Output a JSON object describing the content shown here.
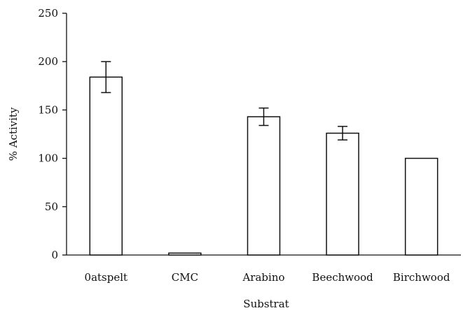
{
  "chart_data": {
    "type": "bar",
    "categories": [
      "0atspelt",
      "CMC",
      "Arabino",
      "Beechwood",
      "Birchwood"
    ],
    "values": [
      184,
      2,
      143,
      126,
      100
    ],
    "error": [
      16,
      0,
      9,
      7,
      0
    ],
    "xlabel": "Substrat",
    "ylabel": "% Activity",
    "ylim": [
      0,
      250
    ],
    "yticks": [
      0,
      50,
      100,
      150,
      200,
      250
    ],
    "grid": false,
    "legend": "none"
  }
}
